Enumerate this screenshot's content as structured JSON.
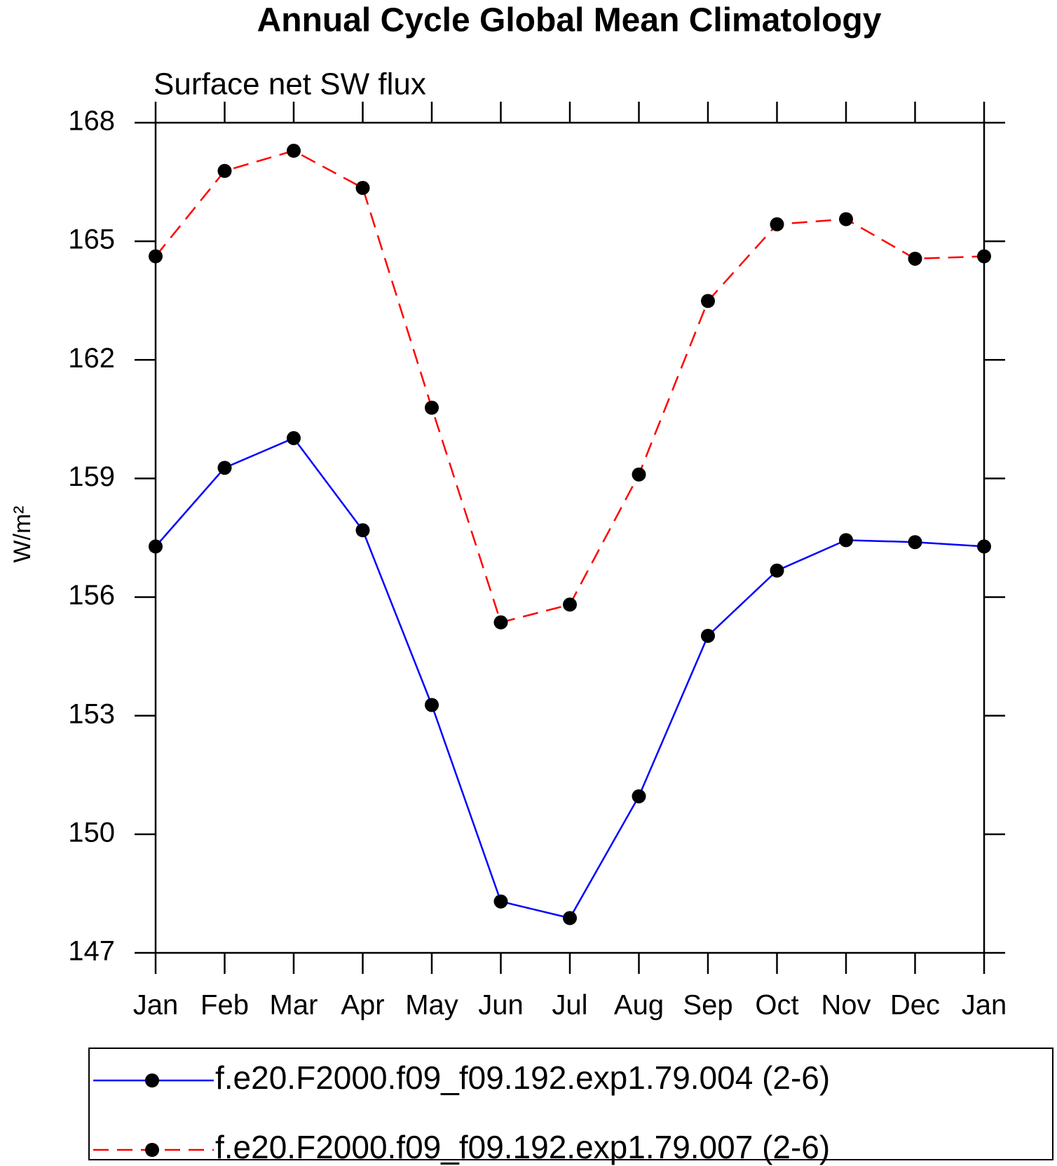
{
  "chart_data": {
    "type": "line",
    "title": "Annual Cycle Global Mean Climatology",
    "subtitle": "Surface net SW flux",
    "y_label": "W/m²",
    "categories": [
      "Jan",
      "Feb",
      "Mar",
      "Apr",
      "May",
      "Jun",
      "Jul",
      "Aug",
      "Sep",
      "Oct",
      "Nov",
      "Dec",
      "Jan"
    ],
    "series": [
      {
        "name": "f.e20.F2000.f09_f09.192.exp1.79.004 (2-6)",
        "color": "#0000ff",
        "dash": "solid",
        "values": [
          157.28,
          159.27,
          160.02,
          157.69,
          153.27,
          148.3,
          147.88,
          150.96,
          155.02,
          156.67,
          157.44,
          157.39,
          157.28
        ]
      },
      {
        "name": "f.e20.F2000.f09_f09.192.exp1.79.007 (2-6)",
        "color": "#ff0000",
        "dash": "dashed",
        "values": [
          164.62,
          166.78,
          167.29,
          166.35,
          160.79,
          155.36,
          155.81,
          159.1,
          163.49,
          165.43,
          165.56,
          164.56,
          164.62
        ]
      }
    ],
    "ylim": [
      147,
      168
    ],
    "yticks": [
      147,
      150,
      153,
      156,
      159,
      162,
      165,
      168
    ],
    "marker_color": "#000000"
  }
}
